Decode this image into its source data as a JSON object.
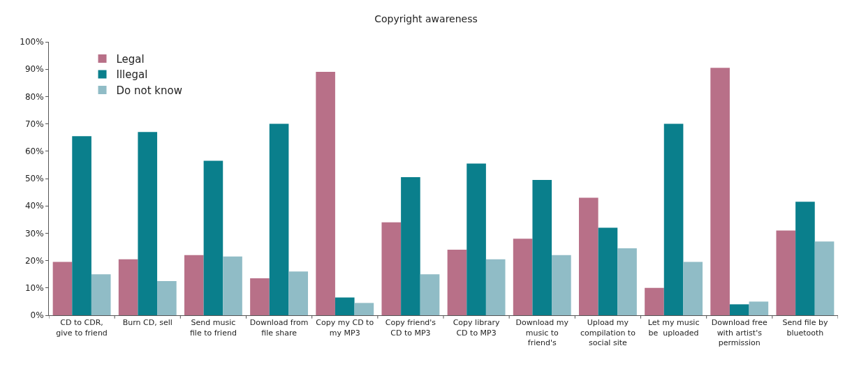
{
  "chart_data": {
    "type": "bar",
    "title": "Copyright awareness",
    "categories": [
      "CD to CDR, give to friend",
      "Burn CD, sell",
      "Send music file to friend",
      "Download from file share",
      "Copy my CD to my MP3",
      "Copy friend's CD to MP3",
      "Copy library CD to MP3",
      "Download my music to friend's",
      "Upload my compilation to social site",
      "Let my music be  uploaded",
      "Download free with artist's permission",
      "Send file by bluetooth"
    ],
    "series": [
      {
        "name": "Legal",
        "color": "#b87088",
        "values": [
          19.5,
          20.5,
          22,
          13.5,
          89,
          34,
          24,
          28,
          43,
          10,
          90.5,
          31
        ]
      },
      {
        "name": "Illegal",
        "color": "#0a7f8c",
        "values": [
          65.5,
          67,
          56.5,
          70,
          6.5,
          50.5,
          55.5,
          49.5,
          32,
          70,
          4,
          41.5
        ]
      },
      {
        "name": "Do not know",
        "color": "#90bcc6",
        "values": [
          15,
          12.5,
          21.5,
          16,
          4.5,
          15,
          20.5,
          22,
          24.5,
          19.5,
          5,
          27
        ]
      }
    ],
    "ylim": [
      0,
      100
    ],
    "yticks": [
      {
        "value": 0,
        "label": "0%"
      },
      {
        "value": 10,
        "label": "10%"
      },
      {
        "value": 20,
        "label": "20%"
      },
      {
        "value": 30,
        "label": "30%"
      },
      {
        "value": 40,
        "label": "40%"
      },
      {
        "value": 50,
        "label": "50%"
      },
      {
        "value": 60,
        "label": "60%"
      },
      {
        "value": 70,
        "label": "70%"
      },
      {
        "value": 80,
        "label": "80%"
      },
      {
        "value": 90,
        "label": "90%"
      },
      {
        "value": 100,
        "label": "100%"
      }
    ],
    "legend": "top left"
  }
}
